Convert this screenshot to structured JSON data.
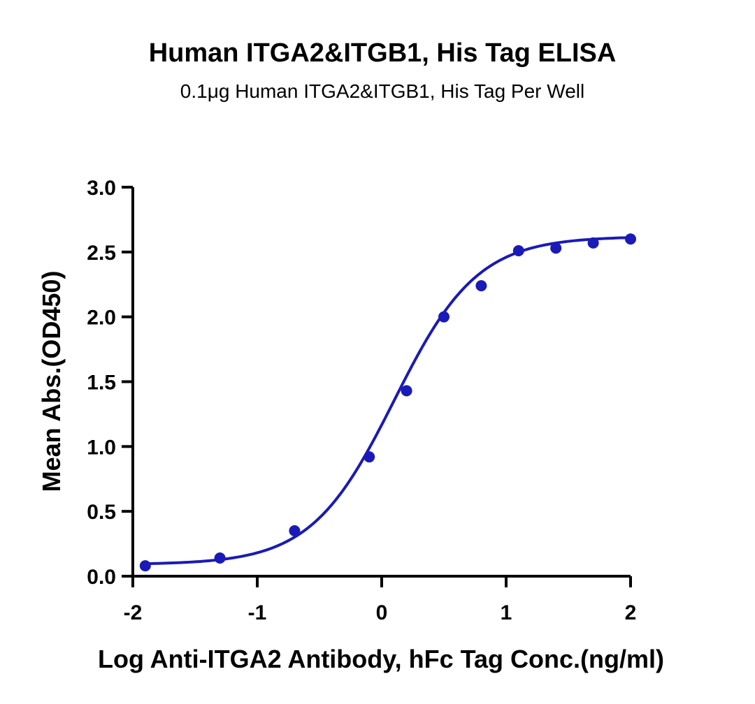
{
  "chart_data": {
    "type": "scatter",
    "title": "Human ITGA2&ITGB1, His Tag ELISA",
    "subtitle": "0.1μg Human ITGA2&ITGB1, His Tag Per Well",
    "xlabel": "Log Anti-ITGA2 Antibody, hFc Tag Conc.(ng/ml)",
    "ylabel": "Mean Abs.(OD450)",
    "xlim": [
      -2,
      2
    ],
    "ylim": [
      0,
      3
    ],
    "x_ticks": [
      -2,
      -1,
      0,
      1,
      2
    ],
    "x_tick_labels": [
      "-2",
      "-1",
      "0",
      "1",
      "2"
    ],
    "y_ticks": [
      0,
      0.5,
      1,
      1.5,
      2,
      2.5,
      3
    ],
    "y_tick_labels": [
      "0.0",
      "0.5",
      "1.0",
      "1.5",
      "2.0",
      "2.5",
      "3.0"
    ],
    "grid": false,
    "legend": "none",
    "series": [
      {
        "x": [
          -1.9,
          -1.3,
          -0.7,
          -0.1,
          0.2,
          0.5,
          0.8,
          1.1,
          1.4,
          1.7,
          2.0
        ],
        "y": [
          0.08,
          0.14,
          0.35,
          0.92,
          1.43,
          2.0,
          2.24,
          2.51,
          2.53,
          2.57,
          2.6
        ],
        "color": "#1a1ab8",
        "fit": "four-parameter-logistic"
      }
    ]
  }
}
